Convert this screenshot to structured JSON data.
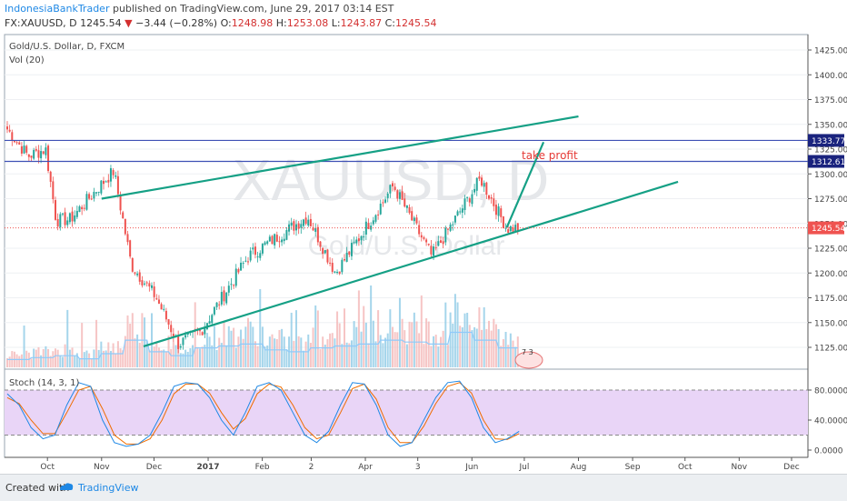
{
  "header": {
    "publisher": "IndonesiaBankTrader",
    "published_text": "published on TradingView.com, June 29, 2017 03:14 EST",
    "symbol": "FX:XAUUSD, D",
    "last": "1245.54",
    "change": "−3.44 (−0.28%)",
    "o_label": "O:",
    "o_value": "1248.98",
    "h_label": "H:",
    "h_value": "1253.08",
    "l_label": "L:",
    "l_value": "1243.87",
    "c_label": "C:",
    "c_value": "1245.54"
  },
  "legend": {
    "title": "Gold/U.S. Dollar, D, FXCM",
    "volume": "Vol (20)",
    "stoch": "Stoch (14, 3, 1)"
  },
  "watermark": {
    "symbol": "XAUUSD, D",
    "name": "Gold/U.S. Dollar"
  },
  "annotations": {
    "take_profit": "take profit",
    "events": "7  3"
  },
  "footer": {
    "created_with": "Created with",
    "brand": "TradingView"
  },
  "colors": {
    "bull": "#26a69a",
    "bear": "#ef5350",
    "channel": "#15a085",
    "hline": "#3f51b5",
    "volume": "#8ecae6",
    "stoch_bg": "#e9d5f7",
    "stoch_k": "#1e88e5",
    "stoch_d": "#ef6c00"
  },
  "chart_data": [
    {
      "type": "candlestick",
      "title": "Gold/U.S. Dollar, D, FXCM",
      "symbol": "XAUUSD",
      "interval": "D",
      "x_ticks": [
        "Oct",
        "Nov",
        "Dec",
        "2017",
        "Feb",
        "2",
        "Apr",
        "3",
        "Jun",
        "Jul",
        "Aug",
        "Sep",
        "Oct",
        "Nov",
        "Dec"
      ],
      "y_ticks": [
        1125,
        1150,
        1175,
        1200,
        1225,
        1250,
        1275,
        1300,
        1325,
        1350,
        1375,
        1400,
        1425
      ],
      "ylim": [
        1108,
        1438
      ],
      "close_path": [
        {
          "date": "2016-09-08",
          "close": 1345
        },
        {
          "date": "2016-09-20",
          "close": 1318
        },
        {
          "date": "2016-09-30",
          "close": 1325
        },
        {
          "date": "2016-10-06",
          "close": 1253
        },
        {
          "date": "2016-10-14",
          "close": 1254
        },
        {
          "date": "2016-10-31",
          "close": 1288
        },
        {
          "date": "2016-11-08",
          "close": 1303
        },
        {
          "date": "2016-11-18",
          "close": 1208
        },
        {
          "date": "2016-12-02",
          "close": 1176
        },
        {
          "date": "2016-12-15",
          "close": 1128
        },
        {
          "date": "2016-12-28",
          "close": 1142
        },
        {
          "date": "2017-01-24",
          "close": 1217
        },
        {
          "date": "2017-02-27",
          "close": 1257
        },
        {
          "date": "2017-03-15",
          "close": 1200
        },
        {
          "date": "2017-04-17",
          "close": 1288
        },
        {
          "date": "2017-05-09",
          "close": 1217
        },
        {
          "date": "2017-06-06",
          "close": 1295
        },
        {
          "date": "2017-06-21",
          "close": 1245
        },
        {
          "date": "2017-06-28",
          "close": 1245.54
        }
      ],
      "horizontal_lines": [
        {
          "label": "1333.77",
          "value": 1333.77
        },
        {
          "label": "1312.61",
          "value": 1312.61
        }
      ],
      "last_price": {
        "label": "1245.54",
        "value": 1245.54
      },
      "trend_channel": {
        "upper": [
          {
            "date": "2016-11-01",
            "value": 1275
          },
          {
            "date": "2017-08-01",
            "value": 1358
          }
        ],
        "lower": [
          {
            "date": "2016-11-25",
            "value": 1126
          },
          {
            "date": "2017-09-27",
            "value": 1292
          }
        ]
      },
      "projection": [
        {
          "date": "2017-06-21",
          "value": 1246
        },
        {
          "date": "2017-07-12",
          "value": 1332
        }
      ]
    },
    {
      "type": "bar",
      "title": "Vol (20)",
      "series": [
        {
          "values_relative": [
            0.2,
            0.25,
            0.3,
            0.22,
            0.35,
            0.7,
            0.4,
            0.3,
            0.5,
            0.55,
            0.6,
            0.45,
            0.4,
            0.5,
            0.55,
            0.6,
            0.7,
            0.65,
            0.6,
            0.9,
            0.7,
            0.5
          ]
        }
      ]
    },
    {
      "type": "line",
      "title": "Stoch (14, 3, 1)",
      "y_ticks": [
        "80.0000",
        "40.0000",
        "0.0000"
      ],
      "ylim": [
        -10,
        110
      ],
      "levels": [
        80,
        20
      ],
      "series": [
        {
          "values": [
            75,
            60,
            30,
            15,
            20,
            60,
            90,
            85,
            40,
            10,
            5,
            8,
            20,
            50,
            85,
            90,
            88,
            70,
            40,
            20,
            50,
            85,
            90,
            80,
            50,
            20,
            10,
            25,
            60,
            90,
            88,
            60,
            20,
            5,
            10,
            40,
            70,
            90,
            92,
            70,
            30,
            10,
            15,
            25
          ]
        },
        {
          "values": [
            70,
            62,
            40,
            22,
            22,
            50,
            80,
            85,
            55,
            20,
            8,
            8,
            15,
            40,
            75,
            88,
            88,
            76,
            50,
            28,
            42,
            75,
            88,
            84,
            60,
            30,
            15,
            20,
            50,
            82,
            88,
            68,
            30,
            10,
            10,
            32,
            62,
            85,
            90,
            76,
            40,
            15,
            14,
            22
          ]
        }
      ]
    }
  ]
}
